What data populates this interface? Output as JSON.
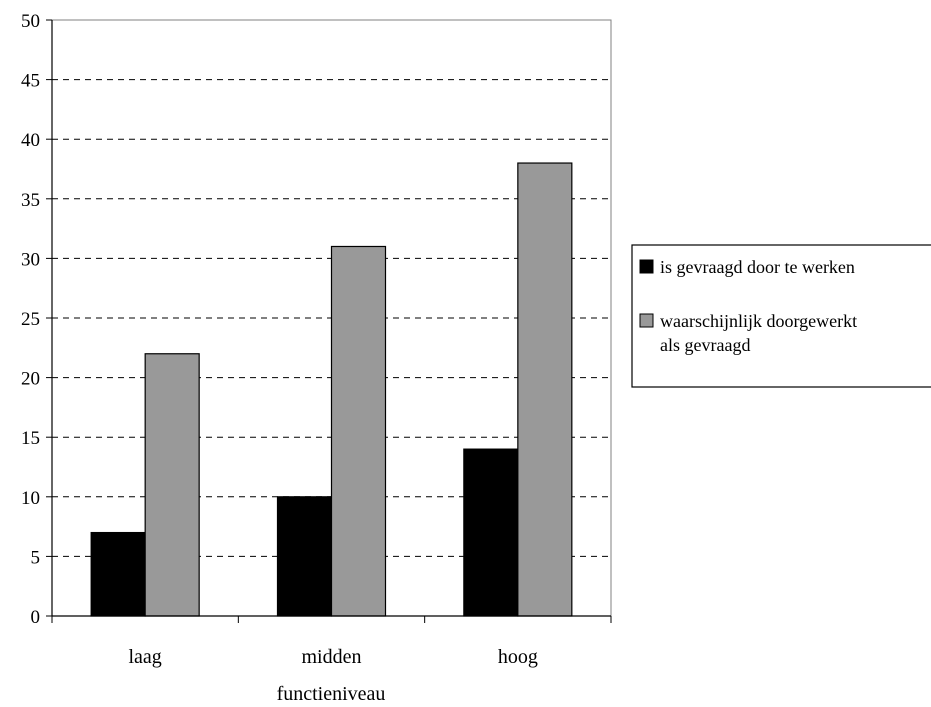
{
  "chart_data": {
    "type": "bar",
    "title": "",
    "xlabel": "functieniveau",
    "ylabel": "",
    "ylim": [
      0,
      50
    ],
    "yticks": [
      0,
      5,
      10,
      15,
      20,
      25,
      30,
      35,
      40,
      45,
      50
    ],
    "grid": true,
    "legend_position": "right",
    "categories": [
      "laag",
      "midden",
      "hoog"
    ],
    "series": [
      {
        "name": "is gevraagd door te werken",
        "color": "#000000",
        "values": [
          7,
          10,
          14
        ]
      },
      {
        "name": "waarschijnlijk doorgewerkt als gevraagd",
        "name_lines": [
          "waarschijnlijk doorgewerkt",
          "als gevraagd"
        ],
        "color": "#999999",
        "values": [
          22,
          31,
          38
        ]
      }
    ]
  }
}
